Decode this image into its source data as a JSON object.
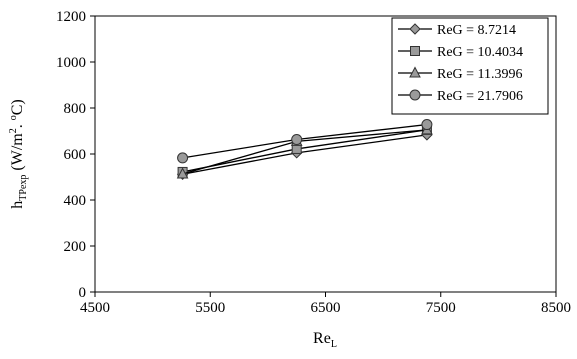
{
  "chart_data": {
    "type": "line",
    "title": "",
    "xlabel": {
      "main": "Re",
      "sub": "L"
    },
    "ylabel": {
      "main": "h",
      "sub": "TPexp",
      "rest": " (W/m",
      "sup1": "2",
      "mid": ". ",
      "sup2": "o",
      "tail": "C)"
    },
    "xlim": [
      4500,
      8500
    ],
    "ylim": [
      0,
      1200
    ],
    "xticks": [
      4500,
      5500,
      6500,
      7500,
      8500
    ],
    "yticks": [
      0,
      200,
      400,
      600,
      800,
      1000,
      1200
    ],
    "grid": false,
    "legend_position": "top-right",
    "series": [
      {
        "name": "ReG = 8.7214",
        "marker": "diamond",
        "color": "#9a9a9a",
        "x": [
          5260,
          6250,
          7380
        ],
        "y": [
          512,
          605,
          683
        ]
      },
      {
        "name": "ReG = 10.4034",
        "marker": "square",
        "color": "#9a9a9a",
        "x": [
          5260,
          6250,
          7380
        ],
        "y": [
          522,
          622,
          705
        ]
      },
      {
        "name": "ReG = 11.3996",
        "marker": "triangle",
        "color": "#9a9a9a",
        "x": [
          5260,
          6250,
          7380
        ],
        "y": [
          513,
          655,
          705
        ]
      },
      {
        "name": "ReG = 21.7906",
        "marker": "circle",
        "color": "#9a9a9a",
        "x": [
          5260,
          6250,
          7380
        ],
        "y": [
          583,
          663,
          728
        ]
      }
    ]
  }
}
